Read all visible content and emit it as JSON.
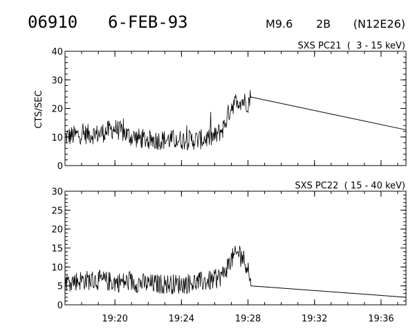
{
  "header": {
    "event_id": "06910",
    "date": "6-FEB-93",
    "flare_class": "M9.6",
    "optical_class": "2B",
    "location": "(N12E26)"
  },
  "chart_data": [
    {
      "type": "line",
      "title": "SXS PC21  (  3 - 15 keV)",
      "xlabel": "",
      "ylabel": "CTS/SEC",
      "ylim": [
        0,
        40
      ],
      "yticks": [
        0,
        10,
        20,
        30,
        40
      ],
      "xlim": [
        "19:17:00",
        "19:37:30"
      ],
      "xticks": [
        "19:20",
        "19:24",
        "19:28",
        "19:32",
        "19:36"
      ],
      "grid": false,
      "series": [
        {
          "x": [
            "19:17:00",
            "19:18:00",
            "19:19:00",
            "19:20:00",
            "19:21:00",
            "19:22:00",
            "19:23:00",
            "19:24:00",
            "19:25:00",
            "19:26:00",
            "19:26:30",
            "19:27:00",
            "19:27:30",
            "19:28:00",
            "19:28:10",
            "19:37:30"
          ],
          "y": [
            10,
            11,
            11,
            13,
            10,
            9,
            9,
            9,
            9,
            10,
            13,
            21,
            23,
            22,
            24,
            12.5
          ]
        }
      ]
    },
    {
      "type": "line",
      "title": "SXS PC22  ( 15 - 40 keV)",
      "xlabel": "",
      "ylabel": "",
      "ylim": [
        0,
        30
      ],
      "yticks": [
        0,
        5,
        10,
        15,
        20,
        25,
        30
      ],
      "xlim": [
        "19:17:00",
        "19:37:30"
      ],
      "xticks": [
        "19:20",
        "19:24",
        "19:28",
        "19:32",
        "19:36"
      ],
      "grid": false,
      "series": [
        {
          "x": [
            "19:17:00",
            "19:18:00",
            "19:19:00",
            "19:20:00",
            "19:21:00",
            "19:22:00",
            "19:23:00",
            "19:24:00",
            "19:25:00",
            "19:26:00",
            "19:26:30",
            "19:27:00",
            "19:27:30",
            "19:28:00",
            "19:28:10",
            "19:37:30"
          ],
          "y": [
            6,
            6.5,
            6.5,
            6,
            6,
            5.5,
            5.5,
            5.5,
            6,
            6.5,
            8,
            12,
            14,
            10,
            5,
            2
          ]
        }
      ]
    }
  ]
}
